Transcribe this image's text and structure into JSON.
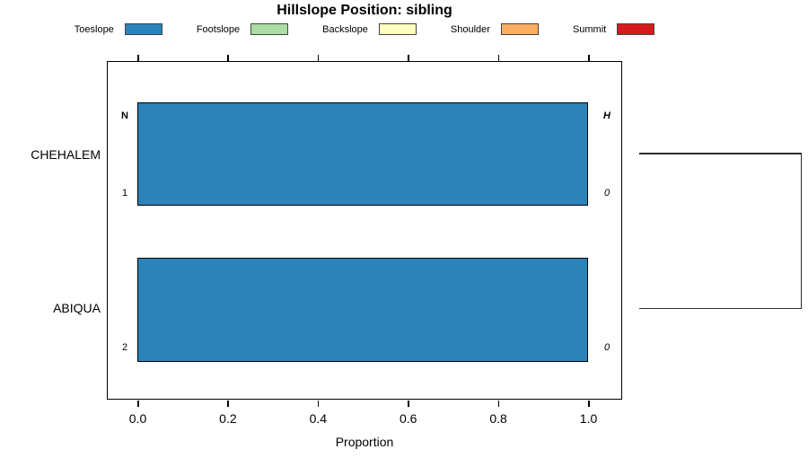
{
  "title": "Hillslope Position: sibling",
  "legend": {
    "items": [
      {
        "label": "Toeslope",
        "color": "#2B83BA"
      },
      {
        "label": "Footslope",
        "color": "#ABDDA4"
      },
      {
        "label": "Backslope",
        "color": "#FFFFBF"
      },
      {
        "label": "Shoulder",
        "color": "#FDAE61"
      },
      {
        "label": "Summit",
        "color": "#D7191C"
      }
    ]
  },
  "chart_data": {
    "type": "bar",
    "orientation": "horizontal",
    "stacked": true,
    "title": "Hillslope Position: sibling",
    "xlabel": "Proportion",
    "ylabel": "",
    "xlim": [
      0,
      1
    ],
    "x_ticks": [
      "0.0",
      "0.2",
      "0.4",
      "0.6",
      "0.8",
      "1.0"
    ],
    "x_tick_values": [
      0.0,
      0.2,
      0.4,
      0.6,
      0.8,
      1.0
    ],
    "grid": false,
    "legend_position": "top-horizontal",
    "categories": [
      "CHEHALEM",
      "ABIQUA"
    ],
    "series": [
      {
        "name": "Toeslope",
        "values": [
          1.0,
          1.0
        ]
      },
      {
        "name": "Footslope",
        "values": [
          0.0,
          0.0
        ]
      },
      {
        "name": "Backslope",
        "values": [
          0.0,
          0.0
        ]
      },
      {
        "name": "Shoulder",
        "values": [
          0.0,
          0.0
        ]
      },
      {
        "name": "Summit",
        "values": [
          0.0,
          0.0
        ]
      }
    ],
    "annotations": {
      "left_header": "N",
      "right_header": "H",
      "left_values": [
        "1",
        "2"
      ],
      "right_values": [
        "0",
        "0"
      ]
    },
    "dendrogram": {
      "description": "two leaves joined by single cluster at right margin",
      "joins": [
        {
          "members": [
            "CHEHALEM",
            "ABIQUA"
          ],
          "height": 1.0
        }
      ]
    }
  },
  "colors": {
    "bar_fill": "#2B83BA",
    "bar_border": "#000000",
    "box_border": "#000000",
    "dendrogram_line": "#2b2b2b"
  }
}
